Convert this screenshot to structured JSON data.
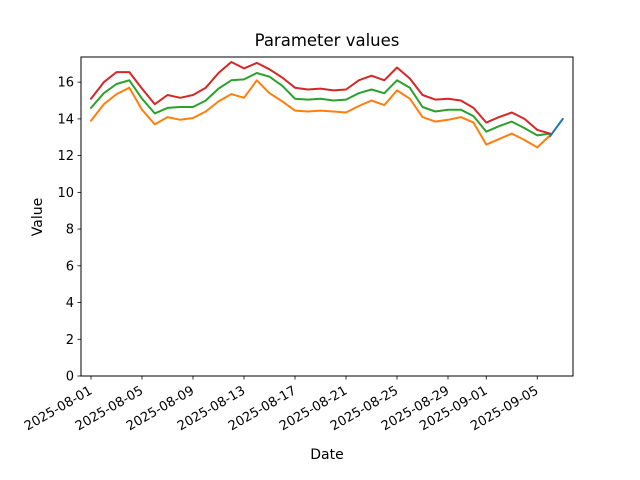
{
  "chart_data": {
    "type": "line",
    "title": "Parameter values",
    "xlabel": "Date",
    "ylabel": "Value",
    "ylim": [
      0,
      17.37
    ],
    "grid": false,
    "legend": "none",
    "y_ticks": [
      0,
      2,
      4,
      6,
      8,
      10,
      12,
      14,
      16
    ],
    "x_tick_labels": [
      "2025-08-01",
      "2025-08-05",
      "2025-08-09",
      "2025-08-13",
      "2025-08-17",
      "2025-08-21",
      "2025-08-25",
      "2025-08-29",
      "2025-09-01",
      "2025-09-05"
    ],
    "dates": [
      "2025-08-01",
      "2025-08-02",
      "2025-08-03",
      "2025-08-04",
      "2025-08-05",
      "2025-08-06",
      "2025-08-07",
      "2025-08-08",
      "2025-08-09",
      "2025-08-10",
      "2025-08-11",
      "2025-08-12",
      "2025-08-13",
      "2025-08-14",
      "2025-08-15",
      "2025-08-16",
      "2025-08-17",
      "2025-08-18",
      "2025-08-19",
      "2025-08-20",
      "2025-08-21",
      "2025-08-22",
      "2025-08-23",
      "2025-08-24",
      "2025-08-25",
      "2025-08-26",
      "2025-08-27",
      "2025-08-28",
      "2025-08-29",
      "2025-08-30",
      "2025-08-31",
      "2025-09-01",
      "2025-09-02",
      "2025-09-03",
      "2025-09-04",
      "2025-09-05",
      "2025-09-06"
    ],
    "series": [
      {
        "name": "series-orange",
        "color": "#ff7f0e",
        "values": [
          13.9,
          14.8,
          15.35,
          15.7,
          14.5,
          13.7,
          14.1,
          13.95,
          14.05,
          14.4,
          14.95,
          15.35,
          15.15,
          16.1,
          15.4,
          14.95,
          14.45,
          14.4,
          14.45,
          14.4,
          14.35,
          14.7,
          15.0,
          14.75,
          15.55,
          15.1,
          14.1,
          13.85,
          13.95,
          14.1,
          13.8,
          12.6,
          12.9,
          13.2,
          12.85,
          12.45,
          13.1
        ]
      },
      {
        "name": "series-green",
        "color": "#2ca02c",
        "values": [
          14.6,
          15.4,
          15.9,
          16.1,
          15.1,
          14.3,
          14.6,
          14.65,
          14.65,
          15.0,
          15.65,
          16.1,
          16.15,
          16.5,
          16.3,
          15.8,
          15.1,
          15.05,
          15.1,
          15.0,
          15.05,
          15.4,
          15.6,
          15.4,
          16.1,
          15.7,
          14.65,
          14.4,
          14.5,
          14.5,
          14.15,
          13.3,
          13.6,
          13.85,
          13.5,
          13.1,
          13.2
        ]
      },
      {
        "name": "series-red",
        "color": "#d62728",
        "values": [
          15.1,
          16.0,
          16.55,
          16.55,
          15.65,
          14.8,
          15.3,
          15.15,
          15.3,
          15.7,
          16.5,
          17.1,
          16.75,
          17.05,
          16.7,
          16.25,
          15.7,
          15.6,
          15.65,
          15.55,
          15.6,
          16.1,
          16.35,
          16.1,
          16.8,
          16.2,
          15.3,
          15.05,
          15.1,
          15.0,
          14.6,
          13.8,
          14.1,
          14.35,
          14.0,
          13.4,
          13.2
        ]
      },
      {
        "name": "series-blue",
        "color": "#1f77b4",
        "dates": [
          "2025-09-06",
          "2025-09-07"
        ],
        "values": [
          13.05,
          14.0
        ]
      }
    ]
  }
}
